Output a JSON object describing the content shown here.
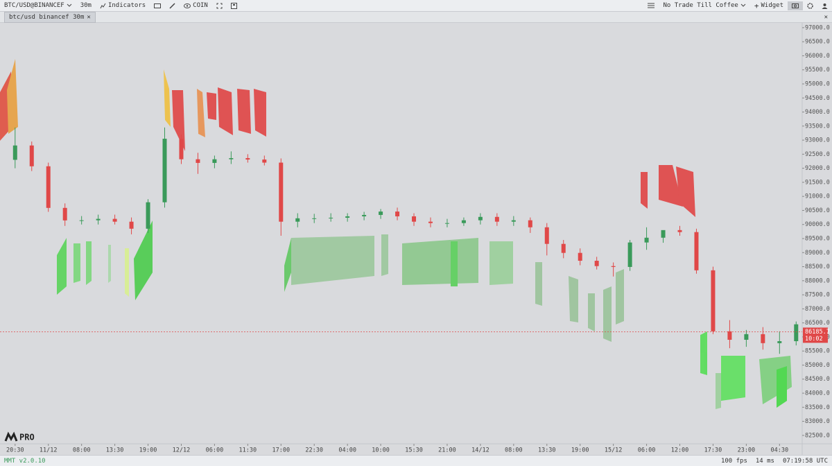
{
  "toolbar": {
    "symbol": "BTC/USD@BINANCEF",
    "interval": "30m",
    "indicators": "Indicators",
    "coin": "COIN",
    "layout": "No Trade Till Coffee",
    "widget": "Widget"
  },
  "tab": {
    "title": "btc/usd binancef 30m"
  },
  "logo": {
    "text": "PRO"
  },
  "chart_data": {
    "type": "candlestick",
    "up_color": "#3a9a5a",
    "down_color": "#e04848",
    "x": [
      0,
      5.5,
      11,
      16.5,
      22,
      27.5,
      33,
      38.5,
      44,
      49.5,
      55,
      60.5,
      66,
      71.5,
      77,
      82.5,
      88,
      93.5,
      99,
      104.5,
      110,
      115.5,
      121,
      126.5,
      132,
      137.5,
      143,
      148.5,
      154,
      159.5,
      165,
      170.5,
      176,
      181.5,
      187,
      192.5,
      198,
      203.5,
      209,
      214.5,
      220,
      225.5,
      231,
      236.5,
      242,
      247.5,
      253,
      258.5
    ],
    "open": [
      92300,
      92810,
      92070,
      90590,
      90145,
      90150,
      90200,
      90100,
      89850,
      90790,
      93050,
      92320,
      92190,
      92320,
      92360,
      92310,
      92200,
      90100,
      90220,
      90220,
      90240,
      90290,
      90340,
      90460,
      90290,
      90100,
      90050,
      90050,
      90150,
      90270,
      90100,
      90150,
      89900,
      89310,
      88990,
      88710,
      88520,
      88490,
      89360,
      89530,
      89800,
      89730,
      88370,
      86200,
      85900,
      86100,
      85780,
      85850
    ],
    "high": [
      93450,
      92950,
      92200,
      90750,
      90300,
      90350,
      90350,
      90250,
      90900,
      93450,
      93200,
      92550,
      92450,
      92600,
      92500,
      92450,
      92350,
      90400,
      90380,
      90400,
      90400,
      90450,
      90550,
      90600,
      90400,
      90250,
      90200,
      90250,
      90400,
      90400,
      90300,
      90250,
      90050,
      89450,
      89150,
      88850,
      88650,
      89450,
      89900,
      89700,
      89950,
      89850,
      88500,
      86600,
      86250,
      86350,
      86200,
      86550
    ],
    "low": [
      92000,
      91900,
      90450,
      89950,
      90000,
      90000,
      90000,
      89650,
      89700,
      90600,
      92150,
      91800,
      92000,
      92150,
      92200,
      92100,
      89600,
      89900,
      90050,
      90100,
      90100,
      90150,
      90200,
      90150,
      89950,
      89900,
      89900,
      89950,
      90000,
      89950,
      89950,
      89700,
      88900,
      88800,
      88550,
      88400,
      88150,
      88350,
      89100,
      89350,
      89600,
      88250,
      86100,
      85600,
      85650,
      85550,
      85400,
      85700
    ],
    "close": [
      92810,
      92070,
      90590,
      90145,
      90150,
      90200,
      90100,
      89850,
      90790,
      93050,
      92320,
      92190,
      92320,
      92360,
      92310,
      92200,
      90100,
      90220,
      90220,
      90240,
      90290,
      90340,
      90460,
      90290,
      90100,
      90050,
      90050,
      90150,
      90270,
      90100,
      90150,
      89900,
      89310,
      88990,
      88710,
      88520,
      88490,
      89360,
      89530,
      89800,
      89730,
      88370,
      86200,
      85900,
      86100,
      85780,
      85850,
      86450
    ],
    "xlim": [
      -5,
      260.5
    ],
    "xticks": [
      {
        "value": 0,
        "label": "20:30"
      },
      {
        "value": 11,
        "label": "11/12"
      },
      {
        "value": 22,
        "label": "08:00"
      },
      {
        "value": 33,
        "label": "13:30"
      },
      {
        "value": 44,
        "label": "19:00"
      },
      {
        "value": 55,
        "label": "12/12"
      },
      {
        "value": 66,
        "label": "06:00"
      },
      {
        "value": 77,
        "label": "11:30"
      },
      {
        "value": 88,
        "label": "17:00"
      },
      {
        "value": 99,
        "label": "22:30"
      },
      {
        "value": 110,
        "label": "04:00"
      },
      {
        "value": 121,
        "label": "10:00"
      },
      {
        "value": 132,
        "label": "15:30"
      },
      {
        "value": 143,
        "label": "21:00"
      },
      {
        "value": 154,
        "label": "14/12"
      },
      {
        "value": 165,
        "label": "08:00"
      },
      {
        "value": 176,
        "label": "13:30"
      },
      {
        "value": 187,
        "label": "19:00"
      },
      {
        "value": 198,
        "label": "15/12"
      },
      {
        "value": 209,
        "label": "06:00"
      },
      {
        "value": 220,
        "label": "12:00"
      },
      {
        "value": 231,
        "label": "17:30"
      },
      {
        "value": 242,
        "label": "23:00"
      },
      {
        "value": 253,
        "label": "04:30"
      }
    ],
    "ylim": [
      82200,
      97170
    ],
    "yticks": [
      {
        "value": 82500,
        "label": "82500.0"
      },
      {
        "value": 83000,
        "label": "83000.0"
      },
      {
        "value": 83500,
        "label": "83500.0"
      },
      {
        "value": 84000,
        "label": "84000.0"
      },
      {
        "value": 84500,
        "label": "84500.0"
      },
      {
        "value": 85000,
        "label": "85000.0"
      },
      {
        "value": 85500,
        "label": "85500.0"
      },
      {
        "value": 86000,
        "label": "86000.0"
      },
      {
        "value": 86500,
        "label": "86500.0"
      },
      {
        "value": 87000,
        "label": "87000.0"
      },
      {
        "value": 87500,
        "label": "87500.0"
      },
      {
        "value": 88000,
        "label": "88000.0"
      },
      {
        "value": 88500,
        "label": "88500.0"
      },
      {
        "value": 89000,
        "label": "89000.0"
      },
      {
        "value": 89500,
        "label": "89500.0"
      },
      {
        "value": 90000,
        "label": "90000.0"
      },
      {
        "value": 90500,
        "label": "90500.0"
      },
      {
        "value": 91000,
        "label": "91000.0"
      },
      {
        "value": 91500,
        "label": "91500.0"
      },
      {
        "value": 92000,
        "label": "92000.0"
      },
      {
        "value": 92500,
        "label": "92500.0"
      },
      {
        "value": 93000,
        "label": "93000.0"
      },
      {
        "value": 93500,
        "label": "93500.0"
      },
      {
        "value": 94000,
        "label": "94000.0"
      },
      {
        "value": 94500,
        "label": "94500.0"
      },
      {
        "value": 95000,
        "label": "95000.0"
      },
      {
        "value": 95500,
        "label": "95500.0"
      },
      {
        "value": 96000,
        "label": "96000.0"
      },
      {
        "value": 96500,
        "label": "96500.0"
      },
      {
        "value": 97000,
        "label": "97000.0"
      }
    ],
    "last_price": 86185.7,
    "countdown": "10:02",
    "price_color": "#e04848"
  },
  "footer": {
    "version": "MMT v2.0.10",
    "fps": "100 fps",
    "latency": "14 ms",
    "clock": "07:19:58 UTC"
  }
}
